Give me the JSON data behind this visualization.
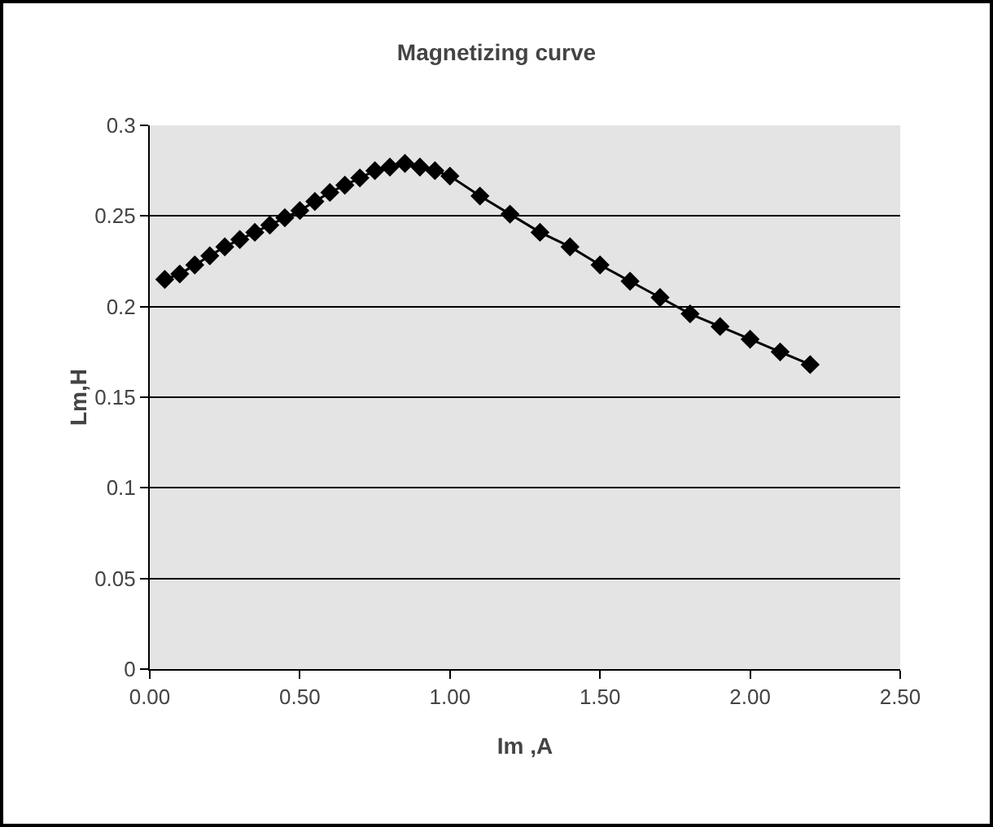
{
  "chart_data": {
    "type": "line",
    "title": "Magnetizing curve",
    "xlabel": "Im ,A",
    "ylabel": "Lm,H",
    "x": [
      0.05,
      0.1,
      0.15,
      0.2,
      0.25,
      0.3,
      0.35,
      0.4,
      0.45,
      0.5,
      0.55,
      0.6,
      0.65,
      0.7,
      0.75,
      0.8,
      0.85,
      0.9,
      0.95,
      1.0,
      1.1,
      1.2,
      1.3,
      1.4,
      1.5,
      1.6,
      1.7,
      1.8,
      1.9,
      2.0,
      2.1,
      2.2
    ],
    "series": [
      {
        "color": "#000000",
        "values": [
          0.215,
          0.218,
          0.223,
          0.228,
          0.233,
          0.237,
          0.241,
          0.245,
          0.249,
          0.253,
          0.258,
          0.263,
          0.267,
          0.271,
          0.275,
          0.277,
          0.279,
          0.277,
          0.275,
          0.272,
          0.261,
          0.251,
          0.241,
          0.233,
          0.223,
          0.214,
          0.205,
          0.196,
          0.189,
          0.182,
          0.175,
          0.168
        ]
      }
    ],
    "xlim": [
      0,
      2.5
    ],
    "xticks": [
      {
        "value": 0,
        "label": "0.00"
      },
      {
        "value": 0.5,
        "label": "0.50"
      },
      {
        "value": 1,
        "label": "1.00"
      },
      {
        "value": 1.5,
        "label": "1.50"
      },
      {
        "value": 2,
        "label": "2.00"
      },
      {
        "value": 2.5,
        "label": "2.50"
      }
    ],
    "ylim": [
      0,
      0.3
    ],
    "yticks": [
      0,
      0.05,
      0.1,
      0.15,
      0.2,
      0.25,
      0.3
    ],
    "grid": "y",
    "marker": "diamond",
    "line_style": "solid"
  }
}
